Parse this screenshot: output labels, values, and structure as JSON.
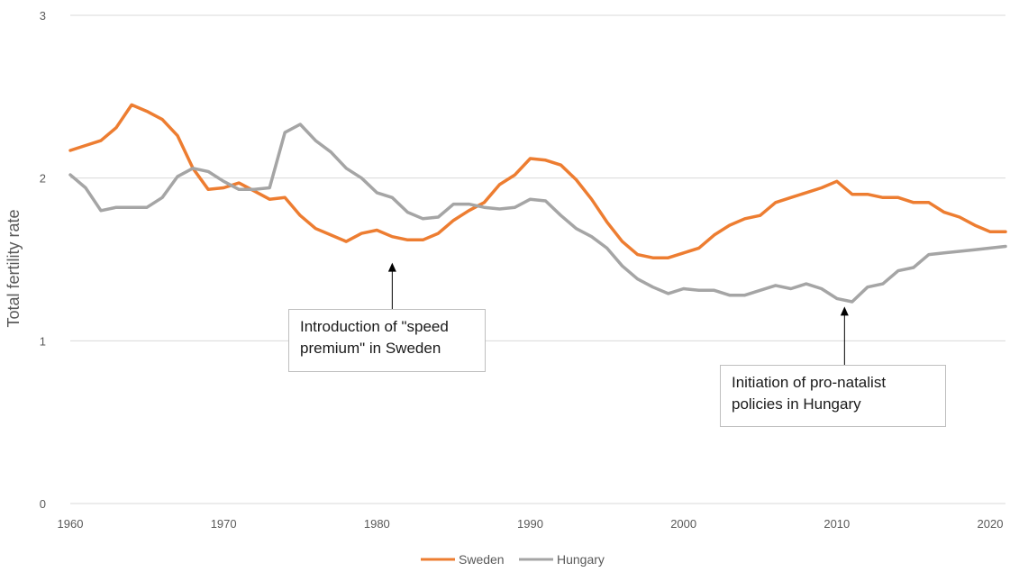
{
  "chart_data": {
    "type": "line",
    "title": "",
    "xlabel": "",
    "ylabel": "Total fertility rate",
    "xlim": [
      1960,
      2021
    ],
    "ylim": [
      0,
      3
    ],
    "x_ticks": [
      1960,
      1970,
      1980,
      1990,
      2000,
      2010,
      2020
    ],
    "y_ticks": [
      0,
      1,
      2,
      3
    ],
    "grid": "horizontal",
    "legend": "bottom-center",
    "x": [
      1960,
      1961,
      1962,
      1963,
      1964,
      1965,
      1966,
      1967,
      1968,
      1969,
      1970,
      1971,
      1972,
      1973,
      1974,
      1975,
      1976,
      1977,
      1978,
      1979,
      1980,
      1981,
      1982,
      1983,
      1984,
      1985,
      1986,
      1987,
      1988,
      1989,
      1990,
      1991,
      1992,
      1993,
      1994,
      1995,
      1996,
      1997,
      1998,
      1999,
      2000,
      2001,
      2002,
      2003,
      2004,
      2005,
      2006,
      2007,
      2008,
      2009,
      2010,
      2011,
      2012,
      2013,
      2014,
      2015,
      2016,
      2017,
      2018,
      2019,
      2020,
      2021
    ],
    "series": [
      {
        "name": "Sweden",
        "color": "#ed7d31",
        "values": [
          2.17,
          2.2,
          2.23,
          2.31,
          2.45,
          2.41,
          2.36,
          2.26,
          2.06,
          1.93,
          1.94,
          1.97,
          1.92,
          1.87,
          1.88,
          1.77,
          1.69,
          1.65,
          1.61,
          1.66,
          1.68,
          1.64,
          1.62,
          1.62,
          1.66,
          1.74,
          1.8,
          1.85,
          1.96,
          2.02,
          2.12,
          2.11,
          2.08,
          1.99,
          1.87,
          1.73,
          1.61,
          1.53,
          1.51,
          1.51,
          1.54,
          1.57,
          1.65,
          1.71,
          1.75,
          1.77,
          1.85,
          1.88,
          1.91,
          1.94,
          1.98,
          1.9,
          1.9,
          1.88,
          1.88,
          1.85,
          1.85,
          1.79,
          1.76,
          1.71,
          1.67,
          1.67
        ]
      },
      {
        "name": "Hungary",
        "color": "#a5a5a5",
        "values": [
          2.02,
          1.94,
          1.8,
          1.82,
          1.82,
          1.82,
          1.88,
          2.01,
          2.06,
          2.04,
          1.98,
          1.93,
          1.93,
          1.94,
          2.28,
          2.33,
          2.23,
          2.16,
          2.06,
          2.0,
          1.91,
          1.88,
          1.79,
          1.75,
          1.76,
          1.84,
          1.84,
          1.82,
          1.81,
          1.82,
          1.87,
          1.86,
          1.77,
          1.69,
          1.64,
          1.57,
          1.46,
          1.38,
          1.33,
          1.29,
          1.32,
          1.31,
          1.31,
          1.28,
          1.28,
          1.31,
          1.34,
          1.32,
          1.35,
          1.32,
          1.26,
          1.24,
          1.33,
          1.35,
          1.43,
          1.45,
          1.53,
          1.54,
          1.55,
          1.56,
          1.57,
          1.58
        ]
      }
    ],
    "annotations": [
      {
        "text": "Introduction of \"speed\npremium\" in Sweden",
        "arrow_x": 1981,
        "arrow_y": 1.48
      },
      {
        "text": "Initiation of pro-natalist\npolicies in Hungary",
        "arrow_x": 2010.5,
        "arrow_y": 1.21
      }
    ]
  }
}
